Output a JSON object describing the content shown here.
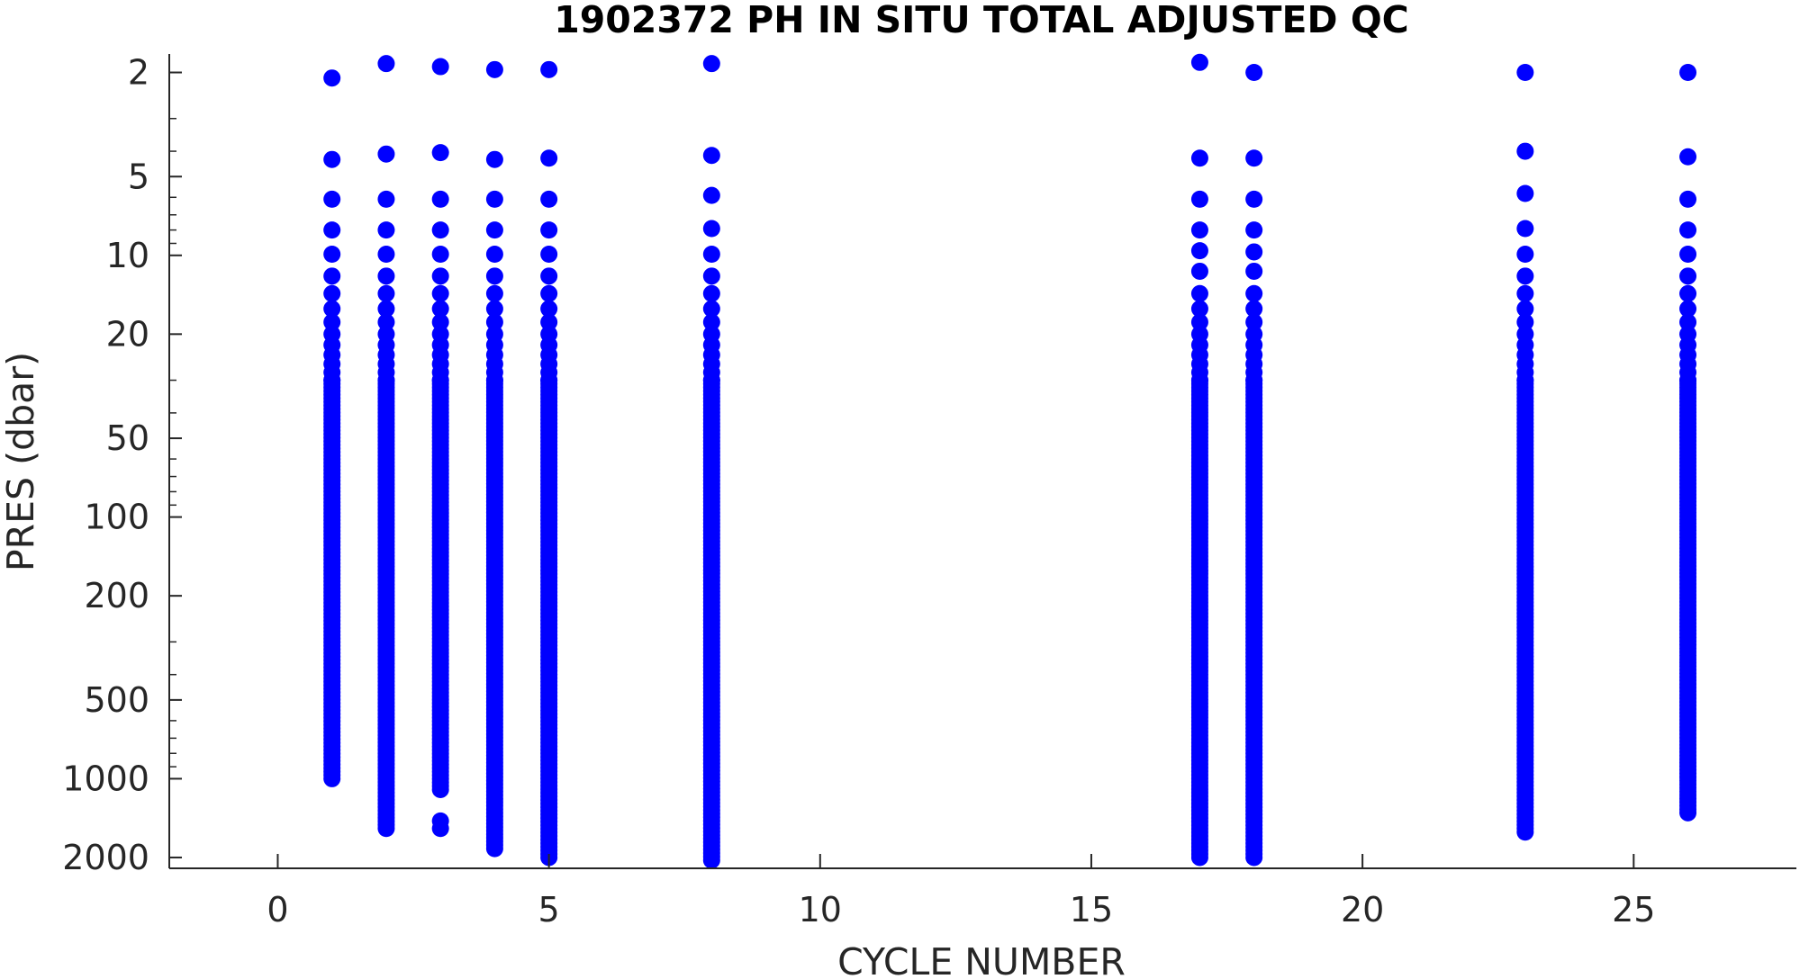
{
  "chart_data": {
    "type": "scatter",
    "title": "1902372  PH IN SITU TOTAL ADJUSTED QC",
    "xlabel": "CYCLE NUMBER",
    "ylabel": "PRES (dbar)",
    "xlim": [
      -2,
      28
    ],
    "ylim": [
      1.7,
      2200
    ],
    "y_scale": "log",
    "y_reversed": true,
    "grid": false,
    "x_ticks": [
      0,
      5,
      10,
      15,
      20,
      25
    ],
    "x_tick_labels": [
      "0",
      "5",
      "10",
      "15",
      "20",
      "25"
    ],
    "y_ticks": [
      2,
      5,
      10,
      20,
      50,
      100,
      200,
      500,
      1000,
      2000
    ],
    "y_tick_labels": [
      "2",
      "5",
      "10",
      "20",
      "50",
      "100",
      "200",
      "500",
      "1000",
      "2000"
    ],
    "marker_color": "#0000ff",
    "series": [
      {
        "profiles": [
          {
            "cycle": 1,
            "pressures": [
              2.1,
              4.3,
              6.1,
              8.0,
              9.9,
              12,
              14,
              16,
              18,
              20,
              22,
              24,
              26,
              28,
              30
            ],
            "continuous_from": 30,
            "continuous_to": 1000
          },
          {
            "cycle": 2,
            "pressures": [
              1.85,
              4.1,
              6.1,
              8.0,
              9.9,
              12,
              14,
              16,
              18,
              20,
              22,
              24,
              26,
              28,
              30
            ],
            "continuous_from": 30,
            "continuous_to": 1550
          },
          {
            "cycle": 3,
            "pressures": [
              1.9,
              4.05,
              6.1,
              8.0,
              9.9,
              12,
              14,
              16,
              18,
              20,
              22,
              24,
              26,
              28,
              30,
              1450,
              1550
            ],
            "continuous_from": 30,
            "continuous_to": 1100
          },
          {
            "cycle": 4,
            "pressures": [
              1.95,
              4.3,
              6.1,
              8.0,
              9.9,
              12,
              14,
              16,
              18,
              20,
              22,
              24,
              26,
              28,
              30
            ],
            "continuous_from": 30,
            "continuous_to": 1850
          },
          {
            "cycle": 5,
            "pressures": [
              1.95,
              4.25,
              6.1,
              8.0,
              9.9,
              12,
              14,
              16,
              18,
              20,
              22,
              24,
              26,
              28,
              30
            ],
            "continuous_from": 30,
            "continuous_to": 2000
          },
          {
            "cycle": 8,
            "pressures": [
              1.85,
              4.15,
              5.9,
              7.9,
              9.9,
              12,
              14,
              16,
              18,
              20,
              22,
              24,
              26,
              28,
              30
            ],
            "continuous_from": 30,
            "continuous_to": 2050
          },
          {
            "cycle": 17,
            "pressures": [
              1.83,
              4.25,
              6.1,
              8.0,
              9.6,
              11.5,
              14,
              16,
              18,
              20,
              22,
              24,
              26,
              28,
              30
            ],
            "continuous_from": 30,
            "continuous_to": 2000
          },
          {
            "cycle": 18,
            "pressures": [
              2.0,
              4.25,
              6.1,
              8.0,
              9.7,
              11.5,
              14,
              16,
              18,
              20,
              22,
              24,
              26,
              28,
              30
            ],
            "continuous_from": 30,
            "continuous_to": 2000
          },
          {
            "cycle": 23,
            "pressures": [
              2.0,
              4.0,
              5.8,
              7.9,
              9.9,
              12,
              14,
              16,
              18,
              20,
              22,
              24,
              26,
              28,
              30
            ],
            "continuous_from": 30,
            "continuous_to": 1600
          },
          {
            "cycle": 26,
            "pressures": [
              2.0,
              4.2,
              6.1,
              8.0,
              9.9,
              12,
              14,
              16,
              18,
              20,
              22,
              24,
              26,
              28,
              30
            ],
            "continuous_from": 30,
            "continuous_to": 1350
          }
        ]
      }
    ]
  }
}
